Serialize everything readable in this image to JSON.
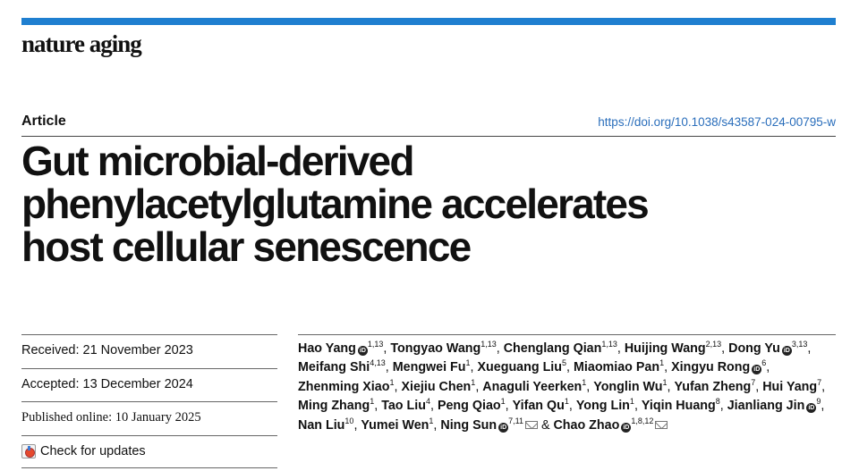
{
  "journal": "nature aging",
  "article_type": "Article",
  "doi": "https://doi.org/10.1038/s43587-024-00795-w",
  "title_lines": [
    "Gut microbial-derived",
    "phenylacetylglutamine accelerates",
    "host cellular senescence"
  ],
  "dates": {
    "received": "Received: 21 November 2023",
    "accepted": "Accepted: 13 December 2024",
    "published": "Published online: 10 January 2025"
  },
  "check_updates": "Check for updates",
  "icons": {
    "orcid": "orcid-icon",
    "mail": "mail-icon",
    "check": "check-for-updates-icon"
  },
  "orcid_glyph": "iD",
  "colors": {
    "top_bar": "#1f7fd0",
    "doi_link": "#2a6ebb"
  },
  "authors": [
    {
      "name": "Hao Yang",
      "orcid": true,
      "aff": "1,13",
      "sep": ", "
    },
    {
      "name": "Tongyao Wang",
      "aff": "1,13",
      "sep": ", "
    },
    {
      "name": "Chenglang Qian",
      "aff": "1,13",
      "sep": ", "
    },
    {
      "name": "Huijing Wang",
      "aff": "2,13",
      "sep": ", "
    },
    {
      "name": "Dong Yu",
      "orcid": true,
      "aff": "3,13",
      "sep": ", "
    },
    {
      "name": "Meifang Shi",
      "aff": "4,13",
      "sep": ", "
    },
    {
      "name": "Mengwei Fu",
      "aff": "1",
      "sep": ", "
    },
    {
      "name": "Xueguang Liu",
      "aff": "5",
      "sep": ", "
    },
    {
      "name": "Miaomiao Pan",
      "aff": "1",
      "sep": ", "
    },
    {
      "name": "Xingyu Rong",
      "orcid": true,
      "aff": "6",
      "sep": ", "
    },
    {
      "name": "Zhenming Xiao",
      "aff": "1",
      "sep": ", "
    },
    {
      "name": "Xiejiu Chen",
      "aff": "1",
      "sep": ", "
    },
    {
      "name": "Anaguli Yeerken",
      "aff": "1",
      "sep": ", "
    },
    {
      "name": "Yonglin Wu",
      "aff": "1",
      "sep": ", "
    },
    {
      "name": "Yufan Zheng",
      "aff": "7",
      "sep": ", "
    },
    {
      "name": "Hui Yang",
      "aff": "7",
      "sep": ", "
    },
    {
      "name": "Ming Zhang",
      "aff": "1",
      "sep": ", "
    },
    {
      "name": "Tao Liu",
      "aff": "4",
      "sep": ", "
    },
    {
      "name": "Peng Qiao",
      "aff": "1",
      "sep": ", "
    },
    {
      "name": "Yifan Qu",
      "aff": "1",
      "sep": ", "
    },
    {
      "name": "Yong Lin",
      "aff": "1",
      "sep": ", "
    },
    {
      "name": "Yiqin Huang",
      "aff": "8",
      "sep": ", "
    },
    {
      "name": "Jianliang Jin",
      "orcid": true,
      "aff": "9",
      "sep": ", "
    },
    {
      "name": "Nan Liu",
      "aff": "10",
      "sep": ", "
    },
    {
      "name": "Yumei Wen",
      "aff": "1",
      "sep": ", "
    },
    {
      "name": "Ning Sun",
      "orcid": true,
      "aff": "7,11",
      "mail": true,
      "sep": " & "
    },
    {
      "name": "Chao Zhao",
      "orcid": true,
      "aff": "1,8,12",
      "mail": true,
      "sep": ""
    }
  ]
}
